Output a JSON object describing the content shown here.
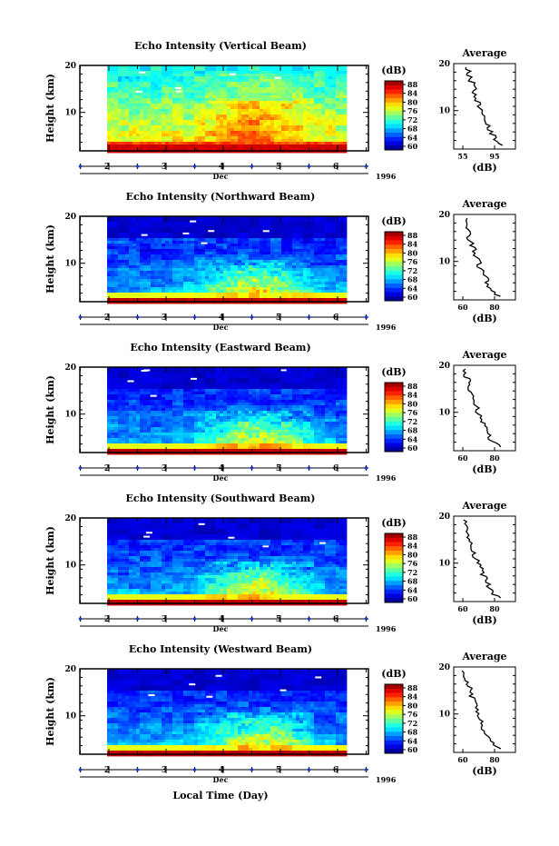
{
  "figure": {
    "xlabel": "Local Time (Day)",
    "month_label": "Dec",
    "year_label": "1996"
  },
  "chart_data": [
    {
      "type": "heatmap",
      "title": "Echo Intensity (Vertical Beam)",
      "ylabel": "Height (km)",
      "yticks": [
        "20",
        "10"
      ],
      "xticks": [
        "2",
        "3",
        "4",
        "5",
        "6"
      ],
      "colorbar": {
        "label": "(dB)",
        "ticks": [
          "88",
          "84",
          "80",
          "76",
          "72",
          "68",
          "64",
          "60"
        ]
      },
      "profile": {
        "title": "Average",
        "xlabel": "(dB)",
        "xticks": [
          "55",
          "95"
        ],
        "yticks": [
          "20",
          "10"
        ]
      }
    },
    {
      "type": "heatmap",
      "title": "Echo Intensity (Northward Beam)",
      "ylabel": "Height (km)",
      "yticks": [
        "20",
        "10"
      ],
      "xticks": [
        "2",
        "3",
        "4",
        "5",
        "6"
      ],
      "colorbar": {
        "label": "(dB)",
        "ticks": [
          "88",
          "84",
          "80",
          "76",
          "72",
          "68",
          "64",
          "60"
        ]
      },
      "profile": {
        "title": "Average",
        "xlabel": "(dB)",
        "xticks": [
          "60",
          "80"
        ],
        "yticks": [
          "20",
          "10"
        ]
      }
    },
    {
      "type": "heatmap",
      "title": "Echo Intensity (Eastward Beam)",
      "ylabel": "Height (km)",
      "yticks": [
        "20",
        "10"
      ],
      "xticks": [
        "2",
        "3",
        "4",
        "5",
        "6"
      ],
      "colorbar": {
        "label": "(dB)",
        "ticks": [
          "88",
          "84",
          "80",
          "76",
          "72",
          "68",
          "64",
          "60"
        ]
      },
      "profile": {
        "title": "Average",
        "xlabel": "(dB)",
        "xticks": [
          "60",
          "80"
        ],
        "yticks": [
          "20",
          "10"
        ]
      }
    },
    {
      "type": "heatmap",
      "title": "Echo Intensity (Southward Beam)",
      "ylabel": "Height (km)",
      "yticks": [
        "20",
        "10"
      ],
      "xticks": [
        "2",
        "3",
        "4",
        "5",
        "6"
      ],
      "colorbar": {
        "label": "(dB)",
        "ticks": [
          "88",
          "84",
          "80",
          "76",
          "72",
          "68",
          "64",
          "60"
        ]
      },
      "profile": {
        "title": "Average",
        "xlabel": "(dB)",
        "xticks": [
          "60",
          "80"
        ],
        "yticks": [
          "20",
          "10"
        ]
      }
    },
    {
      "type": "heatmap",
      "title": "Echo Intensity (Westward Beam)",
      "ylabel": "Height (km)",
      "yticks": [
        "20",
        "10"
      ],
      "xticks": [
        "2",
        "3",
        "4",
        "5",
        "6"
      ],
      "colorbar": {
        "label": "(dB)",
        "ticks": [
          "88",
          "84",
          "80",
          "76",
          "72",
          "68",
          "64",
          "60"
        ]
      },
      "profile": {
        "title": "Average",
        "xlabel": "(dB)",
        "xticks": [
          "60",
          "80"
        ],
        "yticks": [
          "20",
          "10"
        ]
      }
    }
  ]
}
